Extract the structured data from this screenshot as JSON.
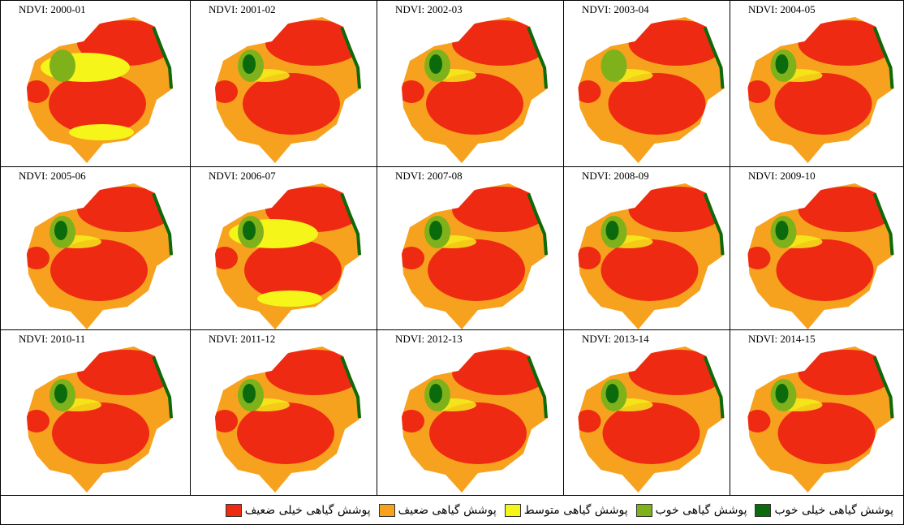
{
  "panels": [
    {
      "label": "NDVI: 2000-01"
    },
    {
      "label": "NDVI: 2001-02"
    },
    {
      "label": "NDVI: 2002-03"
    },
    {
      "label": "NDVI: 2003-04"
    },
    {
      "label": "NDVI: 2004-05"
    },
    {
      "label": "NDVI: 2005-06"
    },
    {
      "label": "NDVI: 2006-07"
    },
    {
      "label": "NDVI: 2007-08"
    },
    {
      "label": "NDVI: 2008-09"
    },
    {
      "label": "NDVI: 2009-10"
    },
    {
      "label": "NDVI: 2010-11"
    },
    {
      "label": "NDVI: 2011-12"
    },
    {
      "label": "NDVI: 2012-13"
    },
    {
      "label": "NDVI: 2013-14"
    },
    {
      "label": "NDVI: 2014-15"
    }
  ],
  "legend": [
    {
      "label": "پوشش گیاهی خیلی خوب",
      "color": "#0b6a0b"
    },
    {
      "label": "پوشش گیاهی خوب",
      "color": "#7fb21a"
    },
    {
      "label": "پوشش گیاهی متوسط",
      "color": "#f5f51a"
    },
    {
      "label": "پوشش گیاهی  ضعیف",
      "color": "#f7a21e"
    },
    {
      "label": "پوشش گیاهی خیلی ضعیف",
      "color": "#ef2a12"
    }
  ]
}
